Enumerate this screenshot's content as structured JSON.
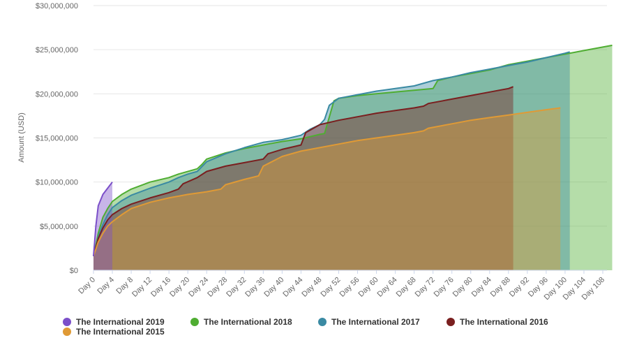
{
  "chart_data": {
    "type": "area",
    "ylabel": "Amount (USD)",
    "xlabel": "",
    "ylim": [
      0,
      30000000
    ],
    "xlim": [
      0,
      110
    ],
    "y_ticks": [
      "$0",
      "$5,000,000",
      "$10,000,000",
      "$15,000,000",
      "$20,000,000",
      "$25,000,000",
      "$30,000,000"
    ],
    "y_tick_values": [
      0,
      5000000,
      10000000,
      15000000,
      20000000,
      25000000,
      30000000
    ],
    "x_ticks": [
      "Day 0",
      "Day 4",
      "Day 8",
      "Day 12",
      "Day 16",
      "Day 20",
      "Day 24",
      "Day 28",
      "Day 32",
      "Day 36",
      "Day 40",
      "Day 44",
      "Day 48",
      "Day 52",
      "Day 56",
      "Day 60",
      "Day 64",
      "Day 68",
      "Day 72",
      "Day 76",
      "Day 80",
      "Day 84",
      "Day 88",
      "Day 92",
      "Day 96",
      "Day 100",
      "Day 104",
      "Day 108"
    ],
    "grid": "horizontal",
    "legend_position": "bottom",
    "series": [
      {
        "name": "The International 2018",
        "color": "#4fad32",
        "points": [
          [
            0,
            1600000
          ],
          [
            1,
            4200000
          ],
          [
            2,
            6000000
          ],
          [
            3,
            7000000
          ],
          [
            4,
            7800000
          ],
          [
            6,
            8600000
          ],
          [
            8,
            9200000
          ],
          [
            12,
            10000000
          ],
          [
            16,
            10500000
          ],
          [
            18,
            10900000
          ],
          [
            22,
            11500000
          ],
          [
            23,
            12000000
          ],
          [
            24,
            12600000
          ],
          [
            28,
            13300000
          ],
          [
            32,
            13800000
          ],
          [
            36,
            14200000
          ],
          [
            40,
            14600000
          ],
          [
            44,
            14900000
          ],
          [
            48,
            15400000
          ],
          [
            49,
            15500000
          ],
          [
            51,
            19200000
          ],
          [
            52,
            19500000
          ],
          [
            56,
            19800000
          ],
          [
            60,
            20000000
          ],
          [
            64,
            20200000
          ],
          [
            68,
            20400000
          ],
          [
            72,
            20600000
          ],
          [
            73,
            21500000
          ],
          [
            76,
            21900000
          ],
          [
            80,
            22300000
          ],
          [
            84,
            22700000
          ],
          [
            88,
            23300000
          ],
          [
            92,
            23700000
          ],
          [
            96,
            24100000
          ],
          [
            100,
            24500000
          ],
          [
            104,
            24900000
          ],
          [
            108,
            25300000
          ],
          [
            110,
            25500000
          ]
        ]
      },
      {
        "name": "The International 2017",
        "color": "#3a8aa3",
        "points": [
          [
            0,
            1600000
          ],
          [
            1,
            3800000
          ],
          [
            2,
            5200000
          ],
          [
            3,
            6300000
          ],
          [
            4,
            7100000
          ],
          [
            6,
            7900000
          ],
          [
            8,
            8500000
          ],
          [
            12,
            9300000
          ],
          [
            16,
            10000000
          ],
          [
            18,
            10500000
          ],
          [
            20,
            10900000
          ],
          [
            22,
            11200000
          ],
          [
            24,
            12300000
          ],
          [
            28,
            13200000
          ],
          [
            32,
            13900000
          ],
          [
            36,
            14500000
          ],
          [
            40,
            14800000
          ],
          [
            44,
            15300000
          ],
          [
            46,
            16000000
          ],
          [
            48,
            16500000
          ],
          [
            49,
            17100000
          ],
          [
            50,
            18700000
          ],
          [
            52,
            19500000
          ],
          [
            56,
            19900000
          ],
          [
            60,
            20300000
          ],
          [
            64,
            20600000
          ],
          [
            68,
            20900000
          ],
          [
            72,
            21500000
          ],
          [
            76,
            21900000
          ],
          [
            80,
            22400000
          ],
          [
            84,
            22800000
          ],
          [
            88,
            23200000
          ],
          [
            92,
            23600000
          ],
          [
            96,
            24100000
          ],
          [
            100,
            24600000
          ],
          [
            101,
            24750000
          ]
        ]
      },
      {
        "name": "The International 2016",
        "color": "#7a1f1f",
        "points": [
          [
            0,
            1600000
          ],
          [
            1,
            3600000
          ],
          [
            2,
            4800000
          ],
          [
            3,
            5700000
          ],
          [
            4,
            6300000
          ],
          [
            6,
            7000000
          ],
          [
            8,
            7500000
          ],
          [
            12,
            8200000
          ],
          [
            16,
            8800000
          ],
          [
            18,
            9200000
          ],
          [
            19,
            9800000
          ],
          [
            22,
            10500000
          ],
          [
            24,
            11200000
          ],
          [
            28,
            11800000
          ],
          [
            32,
            12200000
          ],
          [
            36,
            12600000
          ],
          [
            37,
            13200000
          ],
          [
            40,
            13700000
          ],
          [
            44,
            14200000
          ],
          [
            45,
            15600000
          ],
          [
            48,
            16500000
          ],
          [
            52,
            17000000
          ],
          [
            56,
            17400000
          ],
          [
            60,
            17800000
          ],
          [
            64,
            18100000
          ],
          [
            68,
            18400000
          ],
          [
            70,
            18600000
          ],
          [
            71,
            18900000
          ],
          [
            76,
            19400000
          ],
          [
            80,
            19800000
          ],
          [
            84,
            20200000
          ],
          [
            88,
            20600000
          ],
          [
            89,
            20800000
          ]
        ]
      },
      {
        "name": "The International 2015",
        "color": "#e09a35",
        "points": [
          [
            0,
            1600000
          ],
          [
            1,
            3200000
          ],
          [
            2,
            4200000
          ],
          [
            3,
            5000000
          ],
          [
            4,
            5500000
          ],
          [
            6,
            6300000
          ],
          [
            8,
            7000000
          ],
          [
            12,
            7700000
          ],
          [
            16,
            8200000
          ],
          [
            20,
            8600000
          ],
          [
            24,
            8900000
          ],
          [
            27,
            9200000
          ],
          [
            28,
            9700000
          ],
          [
            32,
            10300000
          ],
          [
            35,
            10700000
          ],
          [
            36,
            11800000
          ],
          [
            40,
            12900000
          ],
          [
            44,
            13500000
          ],
          [
            48,
            13900000
          ],
          [
            52,
            14300000
          ],
          [
            56,
            14700000
          ],
          [
            60,
            15000000
          ],
          [
            64,
            15300000
          ],
          [
            68,
            15600000
          ],
          [
            70,
            15800000
          ],
          [
            71,
            16100000
          ],
          [
            76,
            16600000
          ],
          [
            80,
            17000000
          ],
          [
            84,
            17300000
          ],
          [
            88,
            17600000
          ],
          [
            92,
            17900000
          ],
          [
            96,
            18200000
          ],
          [
            99,
            18400000
          ]
        ]
      },
      {
        "name": "The International 2019",
        "color": "#7b4fc9",
        "points": [
          [
            0,
            1600000
          ],
          [
            0.5,
            5000000
          ],
          [
            1,
            7300000
          ],
          [
            2,
            8600000
          ],
          [
            3,
            9300000
          ],
          [
            4,
            10000000
          ]
        ]
      }
    ]
  },
  "legend": {
    "items": [
      {
        "label": "The International 2019",
        "color": "#7b4fc9"
      },
      {
        "label": "The International 2018",
        "color": "#4fad32"
      },
      {
        "label": "The International 2017",
        "color": "#3a8aa3"
      },
      {
        "label": "The International 2016",
        "color": "#7a1f1f"
      },
      {
        "label": "The International 2015",
        "color": "#e09a35"
      }
    ]
  }
}
